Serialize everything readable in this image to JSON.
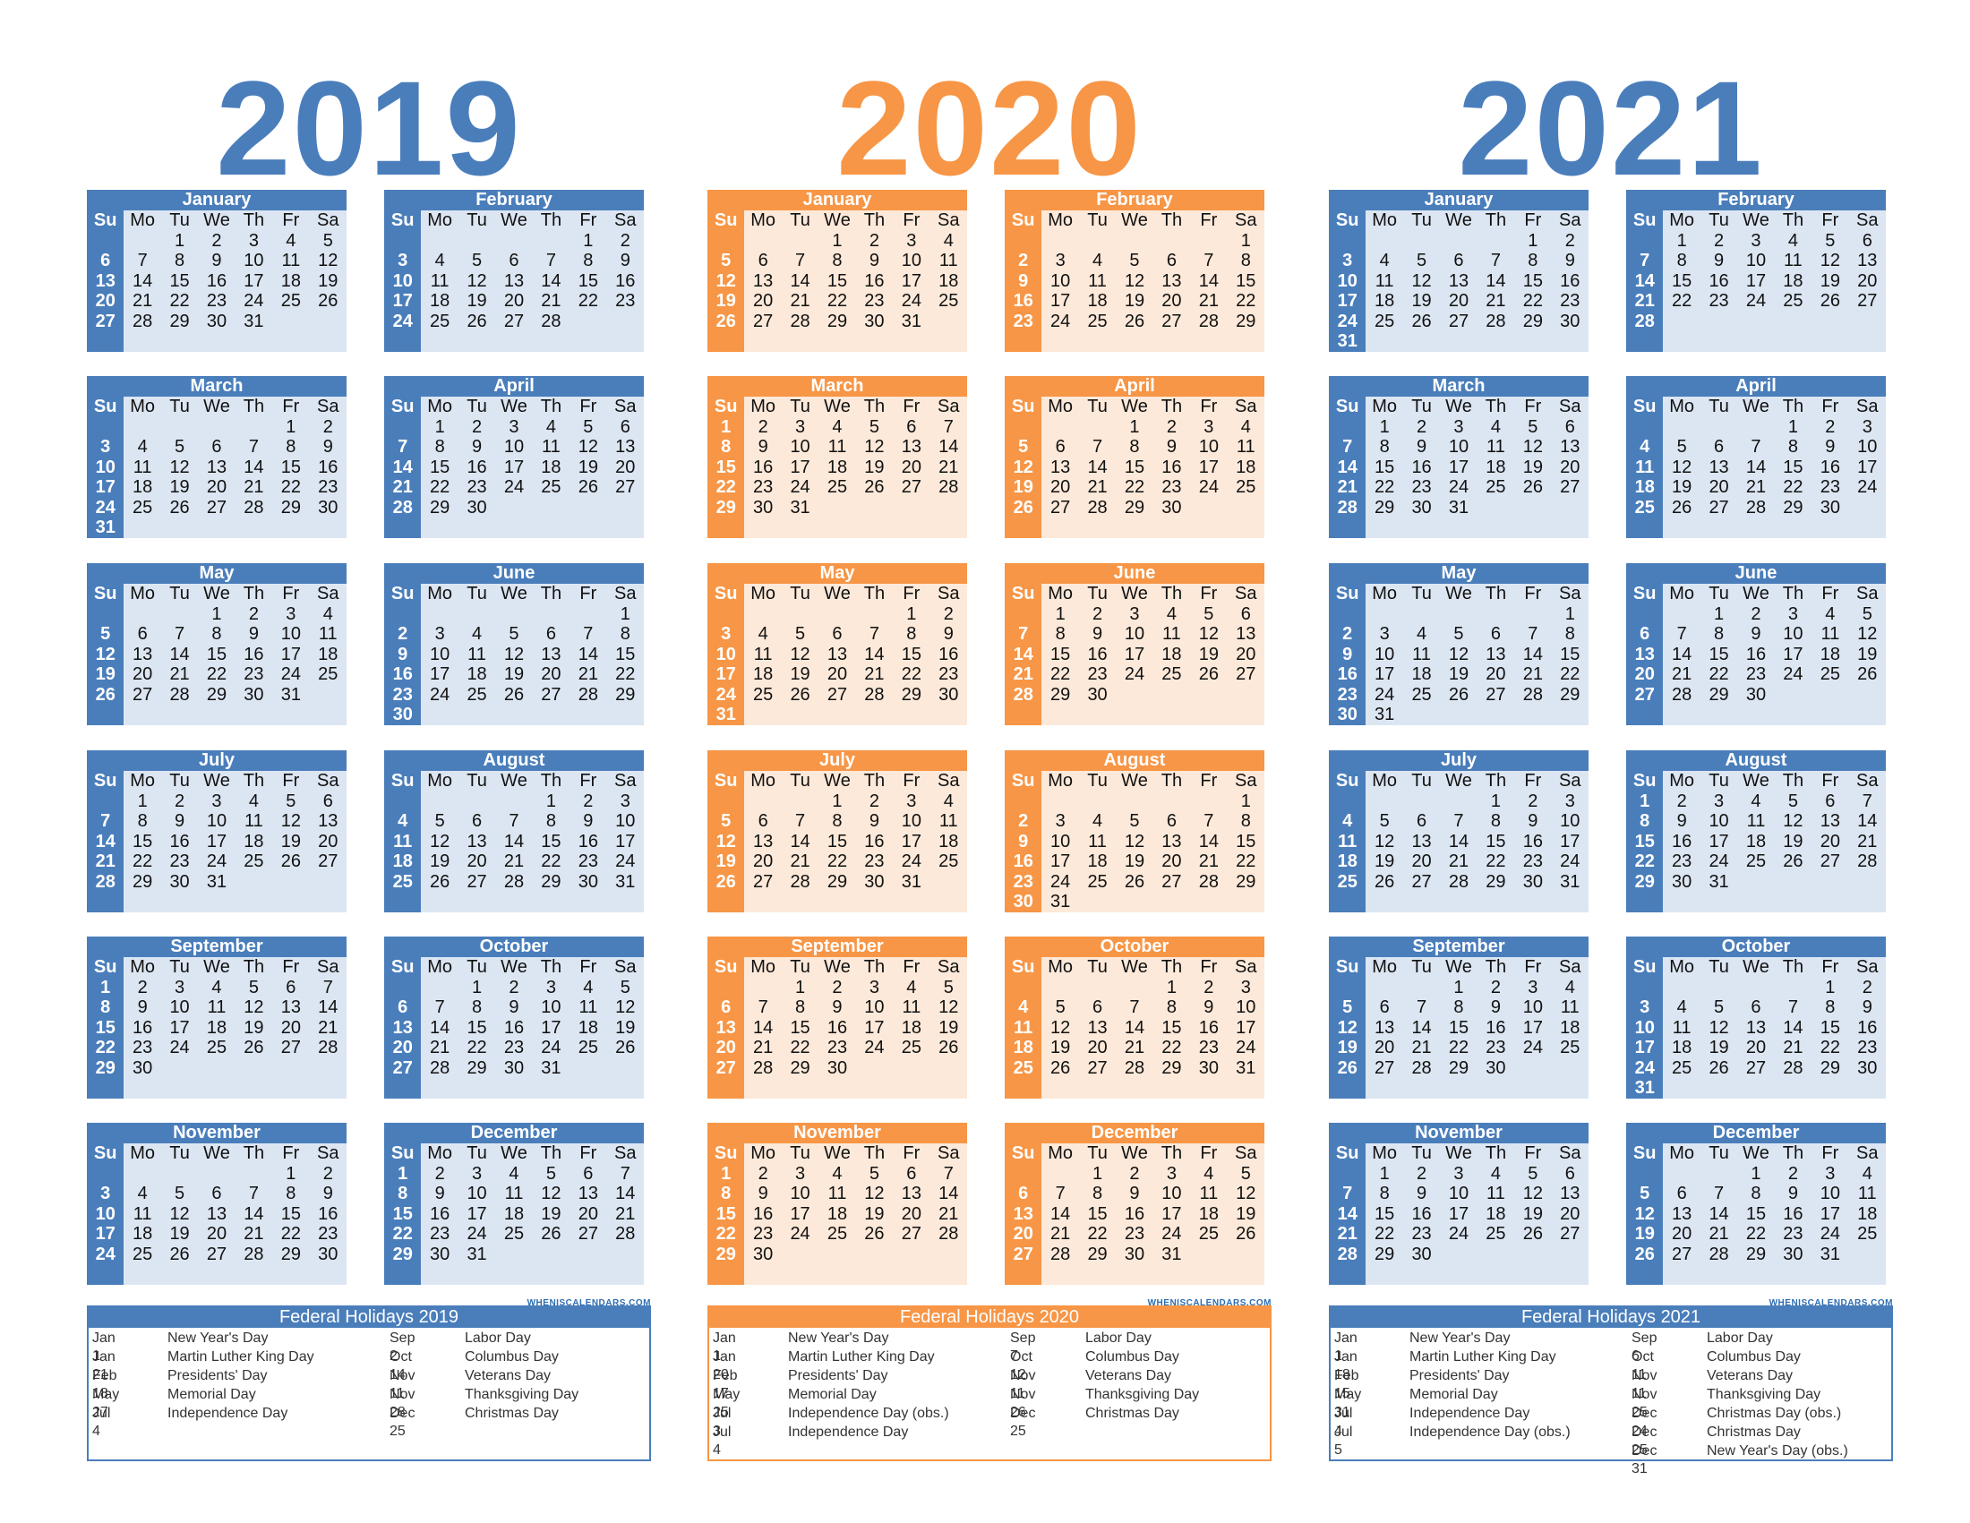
{
  "day_headers": [
    "Su",
    "Mo",
    "Tu",
    "We",
    "Th",
    "Fr",
    "Sa"
  ],
  "months": [
    "January",
    "February",
    "March",
    "April",
    "May",
    "June",
    "July",
    "August",
    "September",
    "October",
    "November",
    "December"
  ],
  "logo": "WHENISCALENDARS.COM",
  "colors": {
    "blue": "#4a7ebb",
    "blue_light": "#dce6f2",
    "orange": "#f79646",
    "orange_light": "#fde9d9"
  },
  "years": [
    {
      "year": "2019",
      "theme": "blue",
      "starts": [
        2,
        5,
        5,
        1,
        3,
        6,
        1,
        4,
        0,
        2,
        5,
        0
      ],
      "holidays_title": "Federal Holidays 2019",
      "holidays_left": [
        {
          "date": "Jan 1",
          "name": "New Year's Day"
        },
        {
          "date": "Jan 21",
          "name": "Martin Luther King Day"
        },
        {
          "date": "Feb 18",
          "name": "Presidents' Day"
        },
        {
          "date": "May 27",
          "name": "Memorial Day"
        },
        {
          "date": "Jul 4",
          "name": "Independence Day"
        }
      ],
      "holidays_right": [
        {
          "date": "Sep 2",
          "name": "Labor Day"
        },
        {
          "date": "Oct 14",
          "name": "Columbus Day"
        },
        {
          "date": "Nov 11",
          "name": "Veterans Day"
        },
        {
          "date": "Nov 28",
          "name": "Thanksgiving Day"
        },
        {
          "date": "Dec 25",
          "name": "Christmas Day"
        }
      ]
    },
    {
      "year": "2020",
      "theme": "orange",
      "starts": [
        3,
        6,
        0,
        3,
        5,
        1,
        3,
        6,
        2,
        4,
        0,
        2
      ],
      "holidays_title": "Federal Holidays 2020",
      "holidays_left": [
        {
          "date": "Jan 1",
          "name": "New Year's Day"
        },
        {
          "date": "Jan 20",
          "name": "Martin Luther King Day"
        },
        {
          "date": "Feb 17",
          "name": "Presidents' Day"
        },
        {
          "date": "May 25",
          "name": "Memorial Day"
        },
        {
          "date": "Jul 3",
          "name": "Independence Day (obs.)"
        },
        {
          "date": "Jul 4",
          "name": "Independence Day"
        }
      ],
      "holidays_right": [
        {
          "date": "Sep 7",
          "name": "Labor Day"
        },
        {
          "date": "Oct 12",
          "name": "Columbus Day"
        },
        {
          "date": "Nov 11",
          "name": "Veterans Day"
        },
        {
          "date": "Nov 26",
          "name": "Thanksgiving Day"
        },
        {
          "date": "Dec 25",
          "name": "Christmas Day"
        }
      ]
    },
    {
      "year": "2021",
      "theme": "blue",
      "starts": [
        5,
        1,
        1,
        4,
        6,
        2,
        4,
        0,
        3,
        5,
        1,
        3
      ],
      "holidays_title": "Federal Holidays 2021",
      "holidays_left": [
        {
          "date": "Jan 1",
          "name": "New Year's Day"
        },
        {
          "date": "Jan 18",
          "name": "Martin Luther King Day"
        },
        {
          "date": "Feb 15",
          "name": "Presidents' Day"
        },
        {
          "date": "May 31",
          "name": "Memorial Day"
        },
        {
          "date": "Jul 4",
          "name": "Independence Day"
        },
        {
          "date": "Jul 5",
          "name": "Independence Day (obs.)"
        }
      ],
      "holidays_right": [
        {
          "date": "Sep 6",
          "name": "Labor Day"
        },
        {
          "date": "Oct 11",
          "name": "Columbus Day"
        },
        {
          "date": "Nov 11",
          "name": "Veterans Day"
        },
        {
          "date": "Nov 25",
          "name": "Thanksgiving Day"
        },
        {
          "date": "Dec 24",
          "name": "Christmas Day (obs.)"
        },
        {
          "date": "Dec 25",
          "name": "Christmas Day"
        },
        {
          "date": "Dec 31",
          "name": "New Year's Day (obs.)"
        }
      ]
    }
  ]
}
